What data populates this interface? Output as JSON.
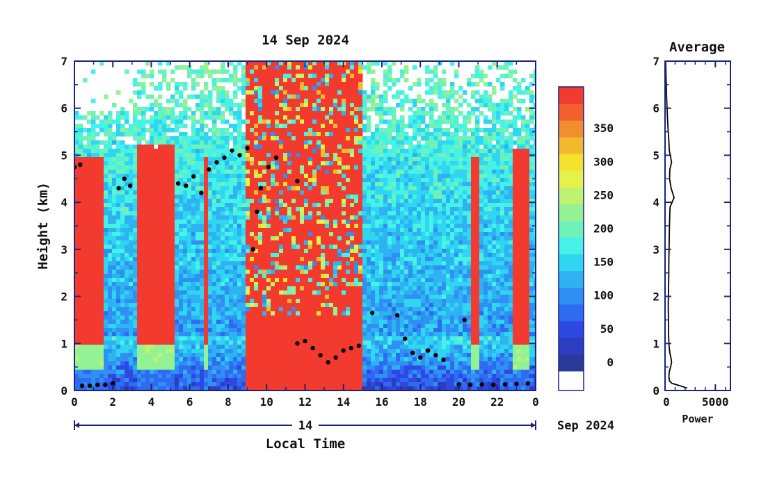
{
  "chart_data": [
    {
      "type": "heatmap",
      "title": "14 Sep 2024",
      "xlabel": "Local Time",
      "ylabel": "Height (km)",
      "x_ticks": [
        "0",
        "2",
        "4",
        "6",
        "8",
        "10",
        "12",
        "14",
        "16",
        "18",
        "20",
        "22",
        "0"
      ],
      "y_ticks": [
        "0",
        "1",
        "2",
        "3",
        "4",
        "5",
        "6",
        "7"
      ],
      "xlim": [
        0,
        24
      ],
      "ylim": [
        0,
        7
      ],
      "date_axis": {
        "day_label": "14",
        "month_label": "Sep 2024"
      },
      "colorbar": {
        "tick_labels": [
          "0",
          "50",
          "100",
          "150",
          "200",
          "250",
          "300",
          "350"
        ],
        "colors": [
          "#2b3a9a",
          "#2b3ec2",
          "#2e49e3",
          "#2e6bf0",
          "#2f8ff2",
          "#2fb2f2",
          "#2fd6f2",
          "#46f2e6",
          "#6ef2b8",
          "#94f294",
          "#bff270",
          "#e6f24a",
          "#f2e22e",
          "#f2b82e",
          "#f28e2e",
          "#f2602e",
          "#f23a2e"
        ],
        "below_color": "#ffffff"
      },
      "cloud_base_heights": [
        {
          "t": 0.0,
          "h": 4.75
        },
        {
          "t": 0.3,
          "h": 4.8
        },
        {
          "t": 2.3,
          "h": 4.3
        },
        {
          "t": 2.6,
          "h": 4.5
        },
        {
          "t": 2.9,
          "h": 4.35
        },
        {
          "t": 5.4,
          "h": 4.4
        },
        {
          "t": 5.8,
          "h": 4.35
        },
        {
          "t": 6.2,
          "h": 4.55
        },
        {
          "t": 6.6,
          "h": 4.2
        },
        {
          "t": 7.0,
          "h": 4.7
        },
        {
          "t": 7.4,
          "h": 4.85
        },
        {
          "t": 7.8,
          "h": 4.95
        },
        {
          "t": 8.2,
          "h": 5.1
        },
        {
          "t": 8.6,
          "h": 5.0
        },
        {
          "t": 9.0,
          "h": 5.15
        },
        {
          "t": 9.3,
          "h": 3.0
        },
        {
          "t": 9.5,
          "h": 3.8
        },
        {
          "t": 9.7,
          "h": 4.3
        },
        {
          "t": 10.1,
          "h": 4.75
        },
        {
          "t": 10.5,
          "h": 4.95
        },
        {
          "t": 11.6,
          "h": 4.45
        },
        {
          "t": 11.6,
          "h": 1.0
        },
        {
          "t": 12.0,
          "h": 1.05
        },
        {
          "t": 12.4,
          "h": 0.9
        },
        {
          "t": 12.8,
          "h": 0.75
        },
        {
          "t": 13.2,
          "h": 0.6
        },
        {
          "t": 13.6,
          "h": 0.7
        },
        {
          "t": 14.0,
          "h": 0.85
        },
        {
          "t": 14.4,
          "h": 0.9
        },
        {
          "t": 14.8,
          "h": 0.95
        },
        {
          "t": 15.5,
          "h": 1.65
        },
        {
          "t": 16.8,
          "h": 1.6
        },
        {
          "t": 17.2,
          "h": 1.1
        },
        {
          "t": 17.6,
          "h": 0.8
        },
        {
          "t": 18.0,
          "h": 0.7
        },
        {
          "t": 18.4,
          "h": 0.85
        },
        {
          "t": 18.8,
          "h": 0.75
        },
        {
          "t": 19.2,
          "h": 0.65
        },
        {
          "t": 20.3,
          "h": 1.5
        },
        {
          "t": 20.0,
          "h": 0.13
        },
        {
          "t": 20.6,
          "h": 0.12
        },
        {
          "t": 21.2,
          "h": 0.13
        },
        {
          "t": 21.8,
          "h": 0.12
        },
        {
          "t": 22.4,
          "h": 0.13
        },
        {
          "t": 23.0,
          "h": 0.14
        },
        {
          "t": 23.6,
          "h": 0.15
        },
        {
          "t": 0.4,
          "h": 0.1
        },
        {
          "t": 0.8,
          "h": 0.1
        },
        {
          "t": 1.2,
          "h": 0.12
        },
        {
          "t": 1.6,
          "h": 0.12
        },
        {
          "t": 2.0,
          "h": 0.15
        }
      ]
    },
    {
      "type": "line",
      "title": "Average",
      "xlabel": "Power",
      "ylabel": "",
      "x_ticks": [
        "0",
        "5000"
      ],
      "y_ticks": [
        "0",
        "1",
        "2",
        "3",
        "4",
        "5",
        "6",
        "7"
      ],
      "xlim": [
        0,
        6500
      ],
      "ylim": [
        0,
        7
      ],
      "series": [
        {
          "x": [
            2200,
            1500,
            700,
            450,
            380,
            420,
            550,
            650,
            580,
            480,
            420,
            380,
            350,
            340,
            330,
            320,
            330,
            350,
            370,
            380,
            400,
            420,
            450,
            500,
            900,
            600,
            450,
            480,
            650,
            520,
            420,
            380,
            320,
            260,
            220,
            180,
            130,
            90,
            60
          ],
          "y": [
            0.05,
            0.1,
            0.15,
            0.2,
            0.3,
            0.4,
            0.5,
            0.6,
            0.7,
            0.8,
            0.9,
            1.0,
            1.2,
            1.4,
            1.6,
            1.8,
            2.0,
            2.2,
            2.5,
            2.8,
            3.0,
            3.3,
            3.6,
            3.9,
            4.1,
            4.3,
            4.5,
            4.7,
            4.85,
            5.0,
            5.1,
            5.3,
            5.5,
            5.7,
            5.9,
            6.1,
            6.4,
            6.7,
            7.0
          ]
        }
      ]
    }
  ]
}
